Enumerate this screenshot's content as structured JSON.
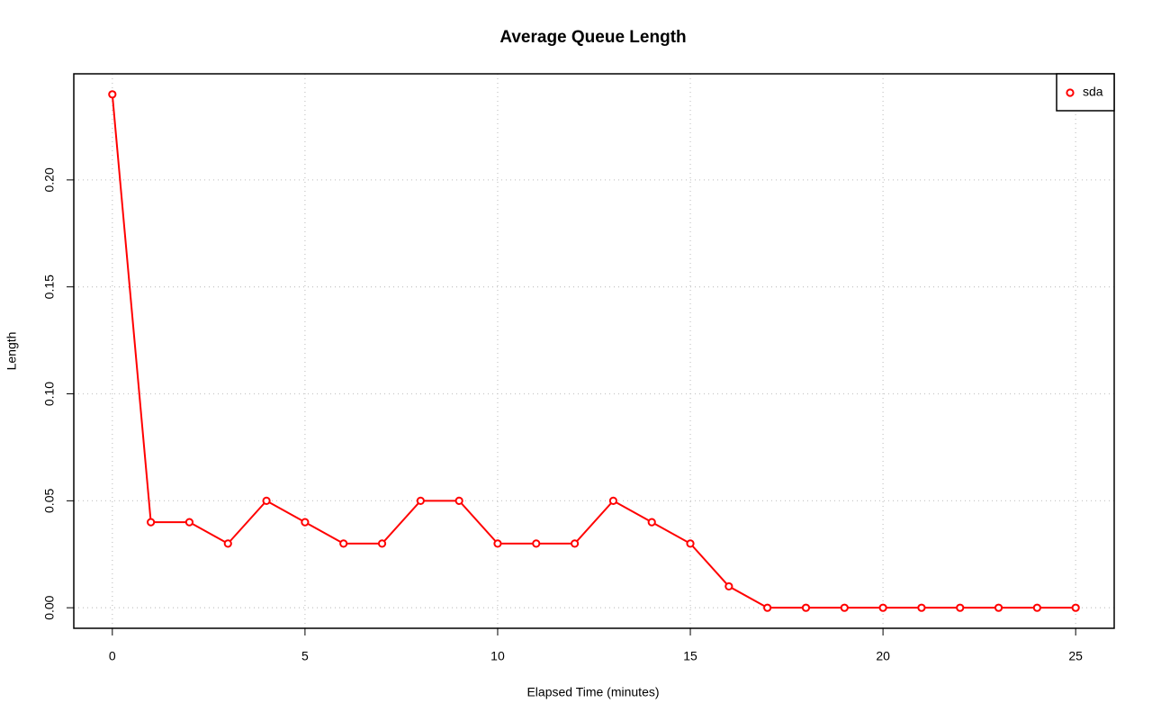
{
  "chart_data": {
    "type": "line",
    "title": "Average Queue Length",
    "x_label": "Elapsed Time (minutes)",
    "y_label": "Length",
    "x": [
      0,
      1,
      2,
      3,
      4,
      5,
      6,
      7,
      8,
      9,
      10,
      11,
      12,
      13,
      14,
      15,
      16,
      17,
      18,
      19,
      20,
      21,
      22,
      23,
      24,
      25
    ],
    "series": [
      {
        "name": "sda",
        "color": "#ff0000",
        "values": [
          0.24,
          0.04,
          0.04,
          0.03,
          0.05,
          0.04,
          0.03,
          0.03,
          0.05,
          0.05,
          0.03,
          0.03,
          0.03,
          0.05,
          0.04,
          0.03,
          0.01,
          0,
          0,
          0,
          0,
          0,
          0,
          0,
          0,
          0
        ]
      }
    ],
    "xlim": [
      -1,
      26
    ],
    "ylim": [
      -0.0096,
      0.2496
    ],
    "xticks": [
      0,
      5,
      10,
      15,
      20,
      25
    ],
    "yticks": [
      {
        "value": 0,
        "label": "0.00"
      },
      {
        "value": 0.05,
        "label": "0.05"
      },
      {
        "value": 0.1,
        "label": "0.10"
      },
      {
        "value": 0.15,
        "label": "0.15"
      },
      {
        "value": 0.2,
        "label": "0.20"
      }
    ],
    "grid": true,
    "legend_position": "topright"
  }
}
